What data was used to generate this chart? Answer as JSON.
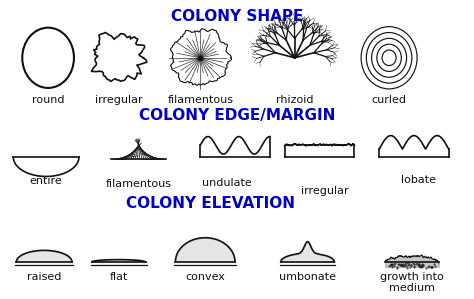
{
  "title1": "COLONY SHAPE",
  "title2": "COLONY EDGE/MARGIN",
  "title3": "COLONY ELEVATION",
  "title_color": "#0000CC",
  "title_fontsize": 11,
  "label_fontsize": 8,
  "bg_color": "#ffffff",
  "shape_labels": [
    "round",
    "irregular",
    "filamentous",
    "rhizoid",
    "curled"
  ],
  "margin_labels": [
    "entire",
    "filamentous",
    "undulate",
    "irregular",
    "lobate"
  ],
  "elevation_labels": [
    "raised",
    "flat",
    "convex",
    "umbonate",
    "growth into\nmedium"
  ],
  "fig_width": 4.74,
  "fig_height": 2.99
}
